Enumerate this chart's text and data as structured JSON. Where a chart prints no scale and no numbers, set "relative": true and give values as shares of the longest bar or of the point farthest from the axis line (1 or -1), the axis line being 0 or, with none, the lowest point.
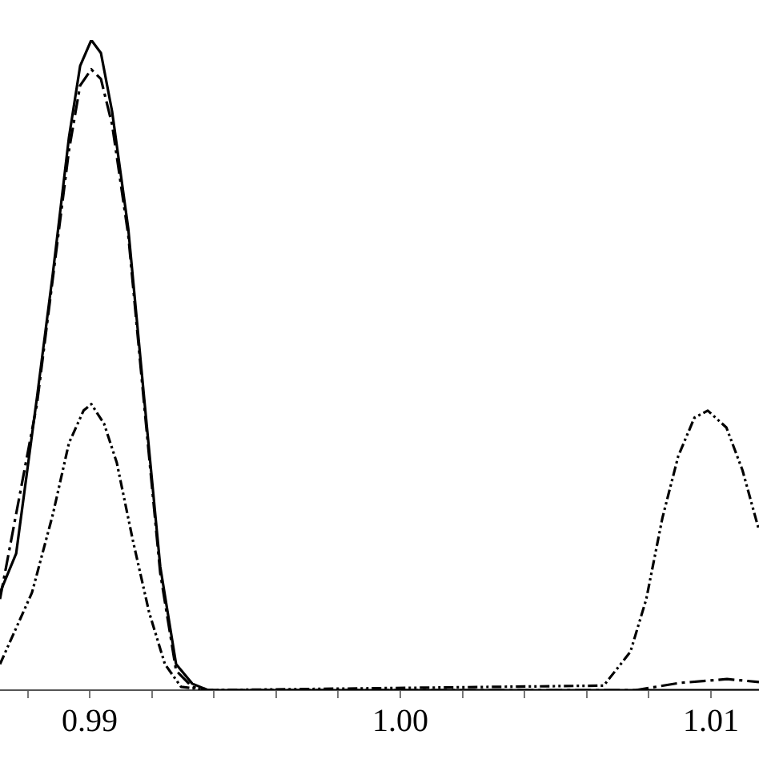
{
  "chart_data": {
    "type": "line",
    "relative": true,
    "grid": false,
    "marker": "none",
    "xlim": [
      0.98711,
      1.01155
    ],
    "xticks": [
      {
        "value": 0.988,
        "label": null
      },
      {
        "value": 0.99,
        "label": "0.99"
      },
      {
        "value": 0.992,
        "label": null
      },
      {
        "value": 0.994,
        "label": null
      },
      {
        "value": 0.996,
        "label": null
      },
      {
        "value": 0.998,
        "label": null
      },
      {
        "value": 1.0,
        "label": "1.00"
      },
      {
        "value": 1.002,
        "label": null
      },
      {
        "value": 1.004,
        "label": null
      },
      {
        "value": 1.006,
        "label": null
      },
      {
        "value": 1.008,
        "label": null
      },
      {
        "value": 1.01,
        "label": "1.01"
      }
    ],
    "series": [
      {
        "color": "#000000",
        "line_style": "solid",
        "x": [
          0.98711,
          0.98763,
          0.9883,
          0.98881,
          0.98933,
          0.98969,
          0.99005,
          0.99036,
          0.99072,
          0.99124,
          0.99175,
          0.99227,
          0.99278,
          0.9933,
          0.99381,
          1.01155
        ],
        "values": [
          0.15,
          0.21,
          0.45,
          0.64,
          0.85,
          0.96,
          1.0,
          0.98,
          0.89,
          0.71,
          0.45,
          0.19,
          0.04,
          0.01,
          0,
          0
        ]
      },
      {
        "color": "#000000",
        "line_style": "dashed",
        "x": [
          0.98711,
          0.9883,
          0.98933,
          0.98969,
          0.99005,
          0.99036,
          0.99072,
          0.99124,
          0.99175,
          0.99227,
          0.99278,
          0.9933,
          0.99381,
          1.00758,
          1.00897,
          1.01052,
          1.01155
        ],
        "values": [
          0.14,
          0.44,
          0.83,
          0.93,
          0.955,
          0.94,
          0.87,
          0.7,
          0.44,
          0.18,
          0.03,
          0.005,
          0,
          0,
          0.011,
          0.017,
          0.0125
        ]
      },
      {
        "color": "#000000",
        "line_style": "dotted",
        "x": [
          0.98711,
          0.98814,
          0.98881,
          0.98933,
          0.9898,
          0.99005,
          0.99046,
          0.99087,
          0.99139,
          0.99191,
          0.99242,
          0.99294,
          0.99381,
          1.00655,
          1.00741,
          1.00792,
          1.00844,
          1.00895,
          1.00947,
          1.0099,
          1.0105,
          1.01102,
          1.01155
        ],
        "values": [
          0.04,
          0.15,
          0.27,
          0.38,
          0.43,
          0.44,
          0.41,
          0.35,
          0.23,
          0.12,
          0.04,
          0.005,
          0,
          0.007,
          0.059,
          0.14,
          0.265,
          0.36,
          0.419,
          0.43,
          0.404,
          0.338,
          0.246
        ]
      }
    ]
  }
}
